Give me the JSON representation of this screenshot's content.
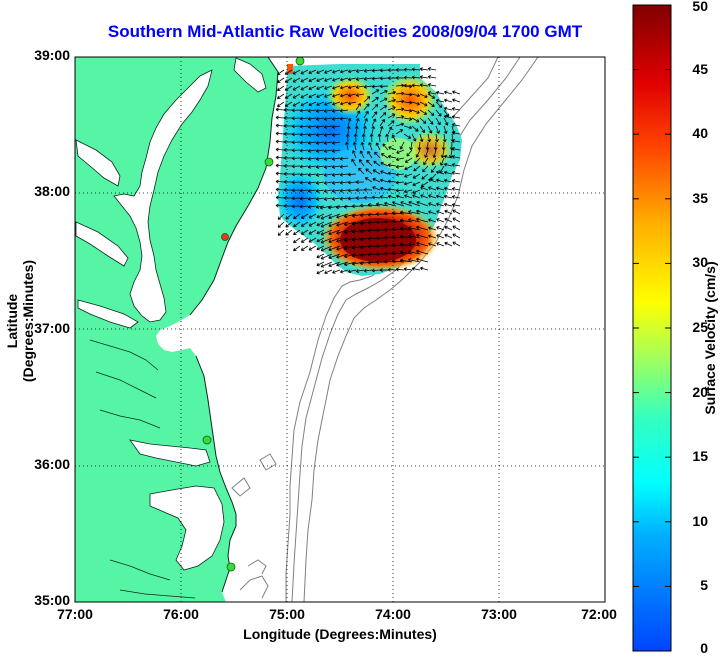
{
  "title": "Southern Mid-Atlantic Raw Velocities 2008/09/04 1700 GMT",
  "xlabel": "Longitude (Degrees:Minutes)",
  "ylabel": "Latitude (Degrees:Minutes)",
  "colorbar": {
    "label": "Surface Velocity (cm/s)",
    "ticks": [
      "0",
      "5",
      "10",
      "15",
      "20",
      "25",
      "30",
      "35",
      "40",
      "45",
      "50"
    ],
    "range": [
      0,
      50
    ]
  },
  "x_ticks": [
    "77:00",
    "76:00",
    "75:00",
    "74:00",
    "73:00",
    "72:00"
  ],
  "y_ticks": [
    "39:00",
    "38:00",
    "37:00",
    "36:00",
    "35:00"
  ],
  "colors": {
    "title": "#0000ff",
    "land": "#55f5a5",
    "grid": "#000000",
    "bathymetry": "#808080",
    "site_active": "#33dd33",
    "site_inactive": "#ee3322"
  },
  "map": {
    "lon_range": [
      -77,
      -72
    ],
    "lat_range": [
      35,
      39
    ],
    "grid": true
  }
}
